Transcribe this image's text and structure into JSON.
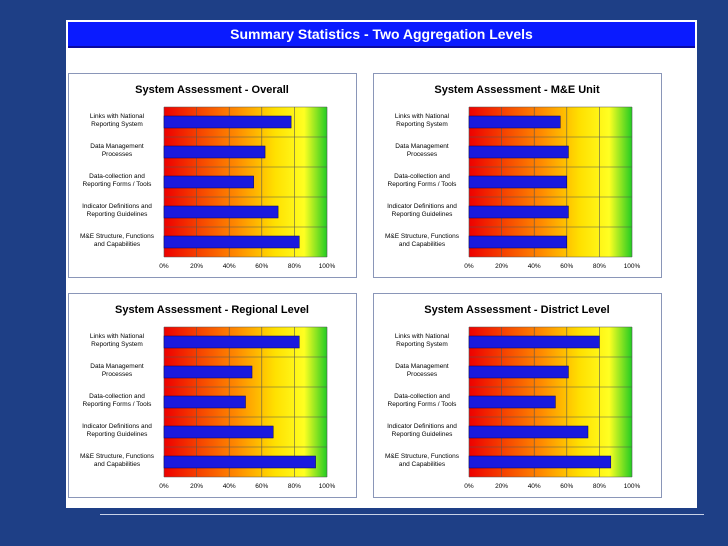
{
  "page_title": "Summary Statistics - Two Aggregation Levels",
  "colors": {
    "background": "#1e3f86",
    "title_bar": "#0a1bff",
    "bar": "#1a1adf"
  },
  "chart_data": [
    {
      "type": "bar",
      "orientation": "horizontal",
      "title": "System Assessment  - Overall",
      "categories": [
        [
          "Links with National",
          "Reporting System"
        ],
        [
          "Data Management",
          "Processes"
        ],
        [
          "Data-collection and",
          "Reporting Forms / Tools"
        ],
        [
          "Indicator Definitions and",
          "Reporting Guidelines"
        ],
        [
          "M&E Structure, Functions",
          "and Capabilities"
        ]
      ],
      "values": [
        78,
        62,
        55,
        70,
        83
      ],
      "xlim": [
        0,
        100
      ],
      "xticks": [
        "0%",
        "20%",
        "40%",
        "60%",
        "80%",
        "100%"
      ],
      "background": "gradient red-orange-yellow-green",
      "grid": true
    },
    {
      "type": "bar",
      "orientation": "horizontal",
      "title": "System Assessment  - M&E Unit",
      "categories": [
        [
          "Links with National",
          "Reporting System"
        ],
        [
          "Data Management",
          "Processes"
        ],
        [
          "Data-collection and",
          "Reporting Forms / Tools"
        ],
        [
          "Indicator Definitions and",
          "Reporting Guidelines"
        ],
        [
          "M&E Structure, Functions",
          "and Capabilities"
        ]
      ],
      "values": [
        56,
        61,
        60,
        61,
        60
      ],
      "xlim": [
        0,
        100
      ],
      "xticks": [
        "0%",
        "20%",
        "40%",
        "60%",
        "80%",
        "100%"
      ],
      "background": "gradient red-orange-yellow-green",
      "grid": true
    },
    {
      "type": "bar",
      "orientation": "horizontal",
      "title": "System Assessment  - Regional Level",
      "categories": [
        [
          "Links with National",
          "Reporting System"
        ],
        [
          "Data Management",
          "Processes"
        ],
        [
          "Data-collection and",
          "Reporting Forms / Tools"
        ],
        [
          "Indicator Definitions and",
          "Reporting Guidelines"
        ],
        [
          "M&E Structure, Functions",
          "and Capabilities"
        ]
      ],
      "values": [
        83,
        54,
        50,
        67,
        93
      ],
      "xlim": [
        0,
        100
      ],
      "xticks": [
        "0%",
        "20%",
        "40%",
        "60%",
        "80%",
        "100%"
      ],
      "background": "gradient red-orange-yellow-green",
      "grid": true
    },
    {
      "type": "bar",
      "orientation": "horizontal",
      "title": "System Assessment  - District Level",
      "categories": [
        [
          "Links with National",
          "Reporting System"
        ],
        [
          "Data Management",
          "Processes"
        ],
        [
          "Data-collection and",
          "Reporting Forms / Tools"
        ],
        [
          "Indicator Definitions and",
          "Reporting Guidelines"
        ],
        [
          "M&E Structure, Functions",
          "and Capabilities"
        ]
      ],
      "values": [
        80,
        61,
        53,
        73,
        87
      ],
      "xlim": [
        0,
        100
      ],
      "xticks": [
        "0%",
        "20%",
        "40%",
        "60%",
        "80%",
        "100%"
      ],
      "background": "gradient red-orange-yellow-green",
      "grid": true
    }
  ]
}
